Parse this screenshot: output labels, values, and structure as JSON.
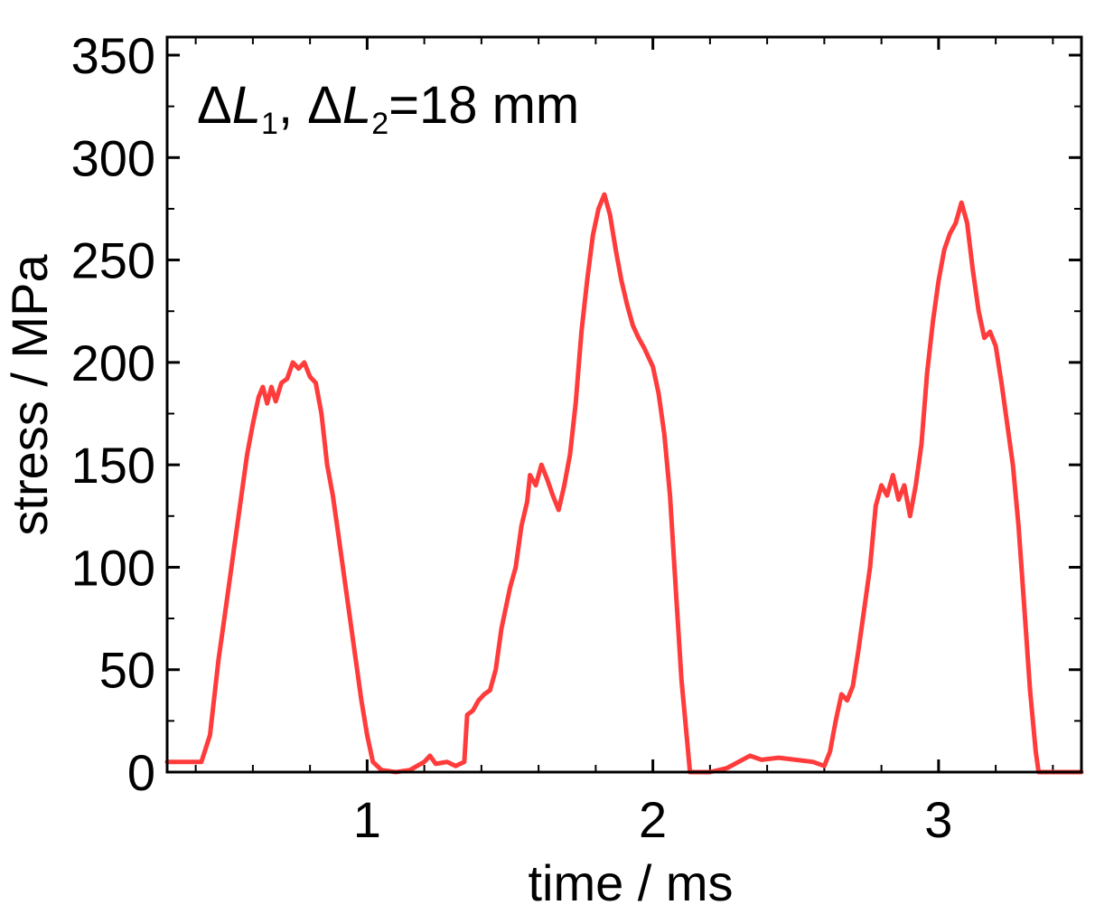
{
  "chart_data": {
    "type": "line",
    "xlabel": "time / ms",
    "ylabel": "stress / MPa",
    "xlim": [
      0.3,
      3.5
    ],
    "ylim": [
      0,
      360
    ],
    "x_ticks": [
      1,
      2,
      3
    ],
    "x_tick_labels": [
      "1",
      "2",
      "3"
    ],
    "x_minor_step": 0.2,
    "y_ticks": [
      0,
      50,
      100,
      150,
      200,
      250,
      300,
      350
    ],
    "y_tick_labels": [
      "0",
      "50",
      "100",
      "150",
      "200",
      "250",
      "300",
      "350"
    ],
    "y_minor_step": 25,
    "grid": false,
    "legend": "none",
    "annotation": {
      "delta": "Δ",
      "var1": "L",
      "sub1": "1",
      "sep": ", ",
      "delta2": "Δ",
      "var2": "L",
      "sub2": "2",
      "rest": "=18 mm"
    },
    "series": [
      {
        "color": "#ff3b3b",
        "points": [
          [
            0.3,
            5
          ],
          [
            0.36,
            5
          ],
          [
            0.42,
            5
          ],
          [
            0.45,
            18
          ],
          [
            0.48,
            55
          ],
          [
            0.5,
            75
          ],
          [
            0.52,
            95
          ],
          [
            0.54,
            115
          ],
          [
            0.56,
            135
          ],
          [
            0.58,
            155
          ],
          [
            0.6,
            170
          ],
          [
            0.62,
            183
          ],
          [
            0.635,
            188
          ],
          [
            0.65,
            180
          ],
          [
            0.665,
            188
          ],
          [
            0.68,
            181
          ],
          [
            0.7,
            190
          ],
          [
            0.72,
            192
          ],
          [
            0.74,
            200
          ],
          [
            0.76,
            197
          ],
          [
            0.78,
            200
          ],
          [
            0.8,
            193
          ],
          [
            0.82,
            190
          ],
          [
            0.84,
            175
          ],
          [
            0.86,
            150
          ],
          [
            0.88,
            135
          ],
          [
            0.9,
            115
          ],
          [
            0.92,
            95
          ],
          [
            0.94,
            75
          ],
          [
            0.96,
            55
          ],
          [
            0.98,
            35
          ],
          [
            1.0,
            18
          ],
          [
            1.02,
            5
          ],
          [
            1.05,
            1
          ],
          [
            1.1,
            0
          ],
          [
            1.15,
            1
          ],
          [
            1.2,
            5
          ],
          [
            1.22,
            8
          ],
          [
            1.24,
            4
          ],
          [
            1.28,
            5
          ],
          [
            1.31,
            3
          ],
          [
            1.34,
            5
          ],
          [
            1.35,
            28
          ],
          [
            1.37,
            30
          ],
          [
            1.39,
            35
          ],
          [
            1.41,
            38
          ],
          [
            1.43,
            40
          ],
          [
            1.45,
            50
          ],
          [
            1.47,
            70
          ],
          [
            1.5,
            90
          ],
          [
            1.52,
            100
          ],
          [
            1.54,
            120
          ],
          [
            1.56,
            132
          ],
          [
            1.57,
            145
          ],
          [
            1.59,
            140
          ],
          [
            1.61,
            150
          ],
          [
            1.63,
            143
          ],
          [
            1.65,
            135
          ],
          [
            1.67,
            128
          ],
          [
            1.69,
            140
          ],
          [
            1.71,
            155
          ],
          [
            1.73,
            180
          ],
          [
            1.75,
            215
          ],
          [
            1.77,
            240
          ],
          [
            1.79,
            262
          ],
          [
            1.81,
            275
          ],
          [
            1.83,
            282
          ],
          [
            1.85,
            272
          ],
          [
            1.87,
            255
          ],
          [
            1.89,
            240
          ],
          [
            1.91,
            228
          ],
          [
            1.93,
            218
          ],
          [
            1.95,
            212
          ],
          [
            1.97,
            207
          ],
          [
            2.0,
            198
          ],
          [
            2.02,
            185
          ],
          [
            2.04,
            165
          ],
          [
            2.06,
            135
          ],
          [
            2.08,
            90
          ],
          [
            2.1,
            45
          ],
          [
            2.12,
            15
          ],
          [
            2.13,
            0
          ],
          [
            2.2,
            0
          ],
          [
            2.26,
            2
          ],
          [
            2.3,
            5
          ],
          [
            2.34,
            8
          ],
          [
            2.38,
            6
          ],
          [
            2.44,
            7
          ],
          [
            2.5,
            6
          ],
          [
            2.56,
            5
          ],
          [
            2.6,
            3
          ],
          [
            2.62,
            10
          ],
          [
            2.64,
            25
          ],
          [
            2.66,
            38
          ],
          [
            2.68,
            35
          ],
          [
            2.7,
            42
          ],
          [
            2.72,
            60
          ],
          [
            2.74,
            80
          ],
          [
            2.76,
            100
          ],
          [
            2.78,
            130
          ],
          [
            2.8,
            140
          ],
          [
            2.82,
            135
          ],
          [
            2.84,
            145
          ],
          [
            2.86,
            133
          ],
          [
            2.88,
            140
          ],
          [
            2.9,
            125
          ],
          [
            2.92,
            140
          ],
          [
            2.94,
            160
          ],
          [
            2.96,
            195
          ],
          [
            2.98,
            220
          ],
          [
            3.0,
            240
          ],
          [
            3.02,
            255
          ],
          [
            3.04,
            263
          ],
          [
            3.06,
            268
          ],
          [
            3.08,
            278
          ],
          [
            3.1,
            268
          ],
          [
            3.12,
            245
          ],
          [
            3.14,
            225
          ],
          [
            3.16,
            212
          ],
          [
            3.18,
            215
          ],
          [
            3.2,
            208
          ],
          [
            3.22,
            190
          ],
          [
            3.24,
            170
          ],
          [
            3.26,
            150
          ],
          [
            3.28,
            120
          ],
          [
            3.3,
            80
          ],
          [
            3.32,
            40
          ],
          [
            3.34,
            10
          ],
          [
            3.35,
            0
          ],
          [
            3.42,
            0
          ],
          [
            3.5,
            0
          ]
        ]
      }
    ]
  }
}
